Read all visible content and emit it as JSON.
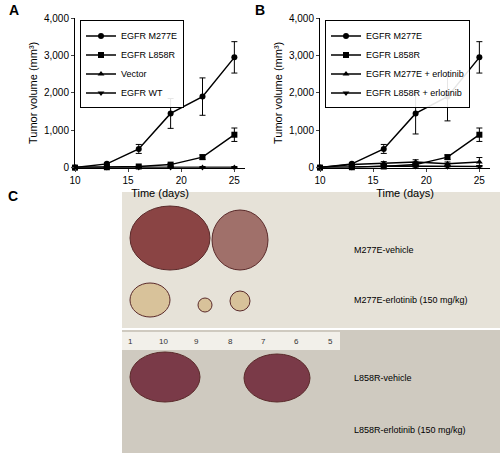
{
  "chart_data": [
    {
      "panel": "A",
      "type": "line",
      "x_label": "Time (days)",
      "y_label": "Tumor volume (mm³)",
      "xlim": [
        10,
        26
      ],
      "xticks": [
        10,
        15,
        20,
        25
      ],
      "ylim": [
        0,
        4000
      ],
      "yticks": [
        0,
        {
          "value": 1000,
          "label": "1,000"
        },
        {
          "value": 2000,
          "label": "2,000"
        },
        {
          "value": 3000,
          "label": "3,000"
        },
        {
          "value": 4000,
          "label": "4,000"
        }
      ],
      "legend": "top left",
      "x": [
        10,
        13,
        16,
        19,
        22,
        25
      ],
      "series": [
        {
          "name": "EGFR M277E",
          "color": "#000000",
          "marker": "circle",
          "line_style": "solid",
          "values": [
            0,
            100,
            500,
            1450,
            1900,
            2950
          ],
          "errors": [
            0,
            30,
            120,
            400,
            500,
            420
          ]
        },
        {
          "name": "EGFR L858R",
          "color": "#000000",
          "marker": "square",
          "line_style": "solid",
          "values": [
            0,
            10,
            30,
            80,
            280,
            880
          ],
          "errors": [
            0,
            5,
            10,
            30,
            60,
            180
          ]
        },
        {
          "name": "Vector",
          "color": "#000000",
          "marker": "triangle-up",
          "line_style": "solid",
          "values": [
            0,
            0,
            0,
            0,
            0,
            0
          ],
          "errors": [
            0,
            0,
            0,
            0,
            0,
            0
          ]
        },
        {
          "name": "EGFR WT",
          "color": "#000000",
          "marker": "triangle-down",
          "line_style": "solid",
          "values": [
            0,
            0,
            0,
            0,
            0,
            0
          ],
          "errors": [
            0,
            0,
            0,
            0,
            0,
            0
          ]
        }
      ]
    },
    {
      "panel": "B",
      "type": "line",
      "x_label": "Time (days)",
      "y_label": "Tumor volume (mm³)",
      "xlim": [
        10,
        26
      ],
      "xticks": [
        10,
        15,
        20,
        25
      ],
      "ylim": [
        0,
        4000
      ],
      "yticks": [
        0,
        {
          "value": 1000,
          "label": "1,000"
        },
        {
          "value": 2000,
          "label": "2,000"
        },
        {
          "value": 3000,
          "label": "3,000"
        },
        {
          "value": 4000,
          "label": "4,000"
        }
      ],
      "legend": "top left",
      "x": [
        10,
        13,
        16,
        19,
        22,
        25
      ],
      "series": [
        {
          "name": "EGFR M277E",
          "color": "#000000",
          "marker": "circle",
          "line_style": "solid",
          "values": [
            0,
            100,
            500,
            1450,
            1900,
            2950
          ],
          "errors": [
            0,
            30,
            120,
            550,
            650,
            420
          ]
        },
        {
          "name": "EGFR L858R",
          "color": "#000000",
          "marker": "square",
          "line_style": "solid",
          "values": [
            0,
            10,
            30,
            80,
            280,
            880
          ],
          "errors": [
            0,
            5,
            10,
            30,
            60,
            180
          ]
        },
        {
          "name": "EGFR M277E + erlotinib",
          "color": "#000000",
          "marker": "triangle-up",
          "line_style": "solid",
          "values": [
            0,
            80,
            120,
            150,
            100,
            150
          ],
          "errors": [
            0,
            20,
            40,
            60,
            50,
            120
          ]
        },
        {
          "name": "EGFR L858R + erlotinib",
          "color": "#000000",
          "marker": "triangle-down",
          "line_style": "solid",
          "values": [
            0,
            0,
            40,
            30,
            20,
            30
          ],
          "errors": [
            0,
            0,
            20,
            15,
            10,
            20
          ]
        }
      ]
    }
  ],
  "panel_c": {
    "panel": "C",
    "labels": [
      "M277E-vehicle",
      "M277E-erlotinib (150 mg/kg)",
      "L858R-vehicle",
      "L858R-erlotinib (150 mg/kg)"
    ],
    "ruler_labels": [
      "1",
      "10",
      "9",
      "8",
      "7",
      "6",
      "5"
    ]
  }
}
